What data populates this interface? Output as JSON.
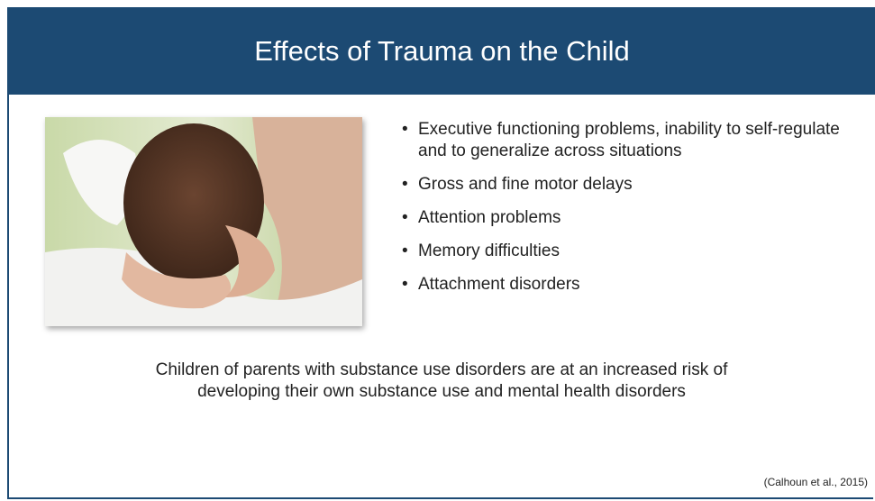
{
  "header": {
    "title": "Effects of Trauma on the Child"
  },
  "bullets": [
    "Executive functioning problems, inability to self-regulate and to generalize across situations",
    "Gross and fine motor delays",
    "Attention problems",
    "Memory difficulties",
    "Attachment disorders"
  ],
  "summary": "Children of parents with substance use disorders are at an increased risk of developing their own substance use and mental health disorders",
  "citation": "(Calhoun et al., 2015)"
}
